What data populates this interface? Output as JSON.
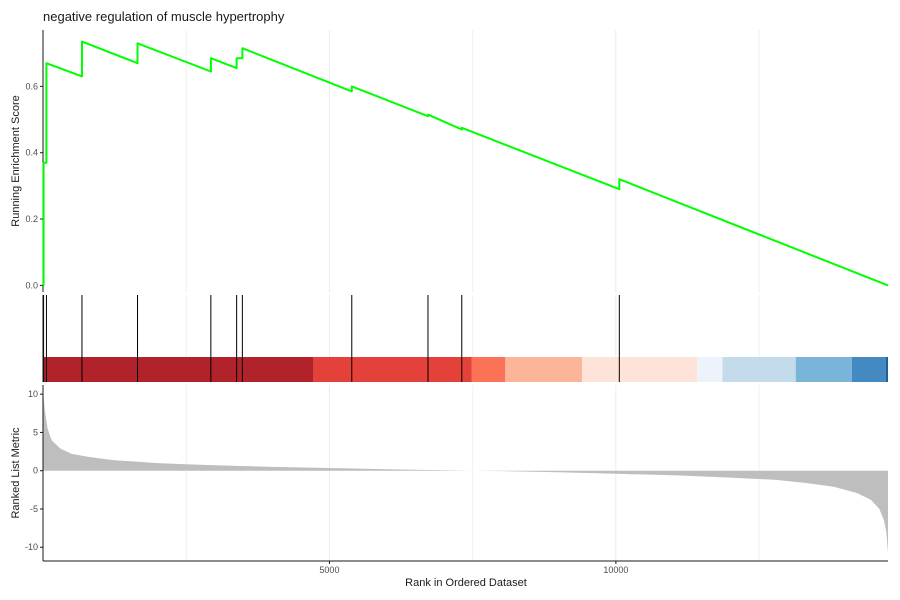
{
  "chart_data": {
    "type": "line",
    "title": "negative regulation of muscle hypertrophy",
    "xlabel": "Rank in Ordered Dataset",
    "x_range": [
      0,
      14750
    ],
    "x_ticks": [
      5000,
      10000
    ],
    "grid": true,
    "line_color": "#00ff00",
    "enrichment": {
      "ylabel": "Running Enrichment Score",
      "ylim": [
        -0.02,
        0.77
      ],
      "y_ticks": [
        0.0,
        0.2,
        0.4,
        0.6
      ],
      "points": [
        [
          0,
          0.0
        ],
        [
          10,
          0.0
        ],
        [
          10,
          0.37
        ],
        [
          60,
          0.37
        ],
        [
          60,
          0.67
        ],
        [
          680,
          0.63
        ],
        [
          680,
          0.735
        ],
        [
          1650,
          0.67
        ],
        [
          1650,
          0.73
        ],
        [
          2930,
          0.645
        ],
        [
          2930,
          0.685
        ],
        [
          3380,
          0.655
        ],
        [
          3380,
          0.685
        ],
        [
          3480,
          0.685
        ],
        [
          3480,
          0.715
        ],
        [
          5390,
          0.585
        ],
        [
          5390,
          0.6
        ],
        [
          6720,
          0.51
        ],
        [
          6720,
          0.515
        ],
        [
          7310,
          0.47
        ],
        [
          7310,
          0.475
        ],
        [
          10060,
          0.29
        ],
        [
          10060,
          0.32
        ],
        [
          14750,
          0.0
        ]
      ]
    },
    "hits": [
      10,
      60,
      680,
      1650,
      2930,
      3380,
      3480,
      5390,
      6720,
      7310,
      10060
    ],
    "color_bar": [
      {
        "from": 0,
        "to": 4720,
        "color": "#b2222a"
      },
      {
        "from": 4720,
        "to": 7480,
        "color": "#e4413b"
      },
      {
        "from": 7480,
        "to": 8070,
        "color": "#fb7256"
      },
      {
        "from": 8070,
        "to": 9410,
        "color": "#fdb59a"
      },
      {
        "from": 9410,
        "to": 11420,
        "color": "#fee4d8"
      },
      {
        "from": 11420,
        "to": 11860,
        "color": "#eef3fb"
      },
      {
        "from": 11860,
        "to": 13140,
        "color": "#c3dbea"
      },
      {
        "from": 13140,
        "to": 14120,
        "color": "#79b4d9"
      },
      {
        "from": 14120,
        "to": 14710,
        "color": "#4389c2"
      },
      {
        "from": 14710,
        "to": 14750,
        "color": "#1f5f9c"
      }
    ],
    "ranked_metric": {
      "ylabel": "Ranked List Metric",
      "ylim": [
        -11.8,
        11.2
      ],
      "y_ticks": [
        -10,
        -5,
        0,
        5,
        10
      ],
      "fill_color": "#bebebe",
      "points": [
        [
          0,
          10.5
        ],
        [
          30,
          8
        ],
        [
          80,
          5.5
        ],
        [
          150,
          4
        ],
        [
          300,
          2.9
        ],
        [
          500,
          2.2
        ],
        [
          800,
          1.8
        ],
        [
          1200,
          1.4
        ],
        [
          1600,
          1.2
        ],
        [
          2000,
          1.0
        ],
        [
          2500,
          0.85
        ],
        [
          3000,
          0.7
        ],
        [
          4000,
          0.5
        ],
        [
          5000,
          0.35
        ],
        [
          6000,
          0.2
        ],
        [
          7000,
          0.05
        ],
        [
          7500,
          0.0
        ],
        [
          8000,
          -0.05
        ],
        [
          9000,
          -0.2
        ],
        [
          10000,
          -0.4
        ],
        [
          11000,
          -0.6
        ],
        [
          12000,
          -0.9
        ],
        [
          12800,
          -1.2
        ],
        [
          13300,
          -1.6
        ],
        [
          13800,
          -2.1
        ],
        [
          14200,
          -2.9
        ],
        [
          14450,
          -3.8
        ],
        [
          14600,
          -5.0
        ],
        [
          14680,
          -6.5
        ],
        [
          14720,
          -8.0
        ],
        [
          14750,
          -10.8
        ]
      ]
    }
  }
}
